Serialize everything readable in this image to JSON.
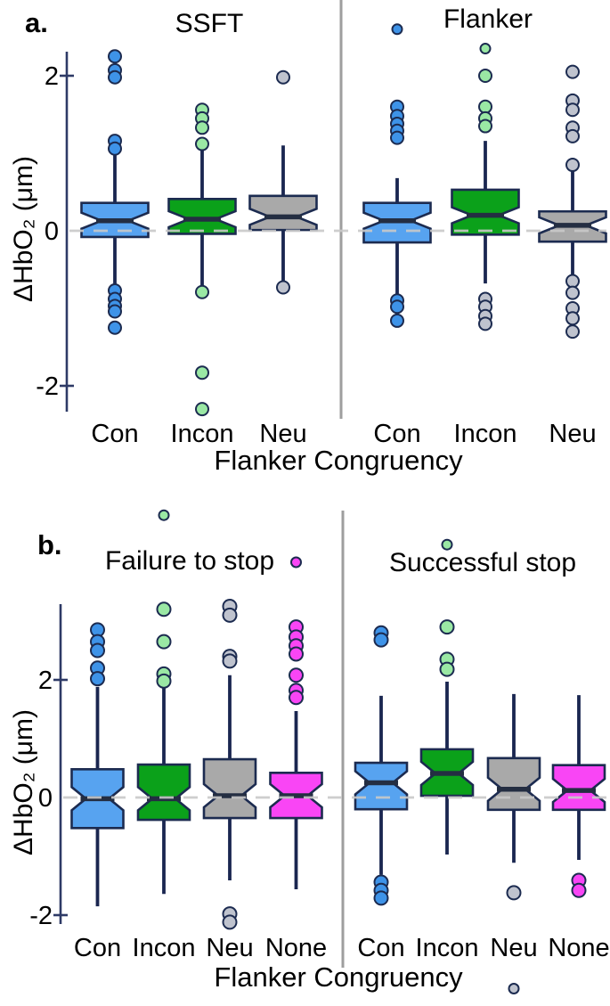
{
  "colors": {
    "blue": "#57a3f0",
    "green": "#0ba11a",
    "gray": "#a9a9a9",
    "magenta": "#f945f5",
    "blue_outlier": "#3e93e8",
    "green_light": "#9ae8a4",
    "gray_light": "#bfc3ce",
    "box_stroke": "#1c2b50",
    "whisker": "#1a2650",
    "median": "#242e42",
    "axis": "#2e3a66",
    "divider": "#9e9e9e",
    "zero_line": "#c9c9c9",
    "text": "#000000"
  },
  "chart_data": [
    {
      "type": "boxplot",
      "panel_label": "a.",
      "ylabel": "ΔHbO₂ (μm)",
      "xlabel": "Flanker Congruency",
      "ylim": [
        -2.4,
        2.35
      ],
      "yticks": [
        2,
        0,
        -2
      ],
      "grid": false,
      "zero_line_dashed": true,
      "subpanels": [
        {
          "title": "SSFT",
          "categories": [
            "Con",
            "Incon",
            "Neu"
          ],
          "boxes": [
            {
              "category": "Con",
              "color": "blue",
              "q1": -0.08,
              "median": 0.13,
              "q3": 0.36,
              "whisker_low": -0.72,
              "whisker_high": 1.03,
              "outliers": [
                {
                  "value": 2.25,
                  "color": "blue_outlier"
                },
                {
                  "value": 2.07,
                  "color": "blue_outlier"
                },
                {
                  "value": 1.98,
                  "color": "blue_outlier"
                },
                {
                  "value": 1.16,
                  "color": "blue_outlier"
                },
                {
                  "value": 1.06,
                  "color": "blue_outlier"
                },
                {
                  "value": -0.77,
                  "color": "blue_outlier"
                },
                {
                  "value": -0.88,
                  "color": "blue_outlier"
                },
                {
                  "value": -0.97,
                  "color": "blue_outlier"
                },
                {
                  "value": -1.04,
                  "color": "blue_outlier"
                },
                {
                  "value": -1.25,
                  "color": "blue_outlier"
                }
              ]
            },
            {
              "category": "Incon",
              "color": "green",
              "q1": -0.04,
              "median": 0.15,
              "q3": 0.41,
              "whisker_low": -0.73,
              "whisker_high": 1.08,
              "outliers": [
                {
                  "value": 1.56,
                  "color": "green_light"
                },
                {
                  "value": 1.45,
                  "color": "green_light"
                },
                {
                  "value": 1.33,
                  "color": "green_light"
                },
                {
                  "value": 1.12,
                  "color": "green_light"
                },
                {
                  "value": -0.79,
                  "color": "green_light"
                },
                {
                  "value": -1.83,
                  "color": "green_light"
                },
                {
                  "value": -2.3,
                  "color": "green_light"
                }
              ]
            },
            {
              "category": "Neu",
              "color": "gray",
              "q1": 0.01,
              "median": 0.18,
              "q3": 0.45,
              "whisker_low": -0.66,
              "whisker_high": 1.1,
              "outliers": [
                {
                  "value": 1.98,
                  "color": "gray_light"
                },
                {
                  "value": -0.73,
                  "color": "gray_light"
                }
              ]
            }
          ]
        },
        {
          "title": "Flanker",
          "categories": [
            "Con",
            "Incon",
            "Neu"
          ],
          "boxes": [
            {
              "category": "Con",
              "color": "blue",
              "q1": -0.15,
              "median": 0.13,
              "q3": 0.36,
              "whisker_low": -0.85,
              "whisker_high": 0.68,
              "outliers": [
                {
                  "value": 2.6,
                  "color": "blue_outlier"
                },
                {
                  "value": 1.6,
                  "color": "blue_outlier"
                },
                {
                  "value": 1.48,
                  "color": "blue_outlier"
                },
                {
                  "value": 1.38,
                  "color": "blue_outlier"
                },
                {
                  "value": 1.29,
                  "color": "blue_outlier"
                },
                {
                  "value": 1.2,
                  "color": "blue_outlier"
                },
                {
                  "value": -0.9,
                  "color": "blue_outlier"
                },
                {
                  "value": -0.98,
                  "color": "blue_outlier"
                },
                {
                  "value": -1.16,
                  "color": "blue_outlier"
                }
              ]
            },
            {
              "category": "Incon",
              "color": "green",
              "q1": -0.05,
              "median": 0.2,
              "q3": 0.53,
              "whisker_low": -0.68,
              "whisker_high": 1.16,
              "outliers": [
                {
                  "value": 2.35,
                  "color": "green_light"
                },
                {
                  "value": 2.0,
                  "color": "green_light"
                },
                {
                  "value": 1.6,
                  "color": "green_light"
                },
                {
                  "value": 1.45,
                  "color": "green_light"
                },
                {
                  "value": 1.35,
                  "color": "green_light"
                },
                {
                  "value": -0.88,
                  "color": "gray_light"
                },
                {
                  "value": -0.98,
                  "color": "gray_light"
                },
                {
                  "value": -1.1,
                  "color": "gray_light"
                },
                {
                  "value": -1.2,
                  "color": "gray_light"
                }
              ]
            },
            {
              "category": "Neu",
              "color": "gray",
              "q1": -0.14,
              "median": 0.07,
              "q3": 0.25,
              "whisker_low": -0.61,
              "whisker_high": 0.77,
              "outliers": [
                {
                  "value": 2.05,
                  "color": "gray_light"
                },
                {
                  "value": 1.68,
                  "color": "gray_light"
                },
                {
                  "value": 1.56,
                  "color": "gray_light"
                },
                {
                  "value": 1.33,
                  "color": "gray_light"
                },
                {
                  "value": 1.22,
                  "color": "gray_light"
                },
                {
                  "value": 0.85,
                  "color": "gray_light"
                },
                {
                  "value": -0.65,
                  "color": "gray_light"
                },
                {
                  "value": -0.8,
                  "color": "gray_light"
                },
                {
                  "value": -1.0,
                  "color": "gray_light"
                },
                {
                  "value": -1.13,
                  "color": "gray_light"
                },
                {
                  "value": -1.3,
                  "color": "gray_light"
                }
              ]
            }
          ]
        }
      ]
    },
    {
      "type": "boxplot",
      "panel_label": "b.",
      "ylabel": "ΔHbO₂ (μm)",
      "xlabel": "Flanker Congruency",
      "ylim": [
        -3.4,
        4.9
      ],
      "yticks": [
        2,
        0,
        -2
      ],
      "grid": false,
      "zero_line_dashed": true,
      "subpanels": [
        {
          "title": "Failure to stop",
          "categories": [
            "Con",
            "Incon",
            "Neu",
            "None"
          ],
          "boxes": [
            {
              "category": "Con",
              "color": "blue",
              "q1": -0.52,
              "median": -0.02,
              "q3": 0.48,
              "whisker_low": -1.85,
              "whisker_high": 1.88,
              "outliers": [
                {
                  "value": 2.85,
                  "color": "blue_outlier"
                },
                {
                  "value": 2.65,
                  "color": "blue_outlier"
                },
                {
                  "value": 2.5,
                  "color": "blue_outlier"
                },
                {
                  "value": 2.2,
                  "color": "blue_outlier"
                },
                {
                  "value": 2.02,
                  "color": "blue_outlier"
                }
              ]
            },
            {
              "category": "Incon",
              "color": "green",
              "q1": -0.38,
              "median": -0.02,
              "q3": 0.56,
              "whisker_low": -1.64,
              "whisker_high": 1.86,
              "outliers": [
                {
                  "value": 4.8,
                  "color": "green_light"
                },
                {
                  "value": 3.2,
                  "color": "green_light"
                },
                {
                  "value": 2.65,
                  "color": "green_light"
                },
                {
                  "value": 2.1,
                  "color": "green_light"
                },
                {
                  "value": 1.98,
                  "color": "green_light"
                }
              ]
            },
            {
              "category": "Neu",
              "color": "gray",
              "q1": -0.35,
              "median": 0.03,
              "q3": 0.65,
              "whisker_low": -1.41,
              "whisker_high": 2.08,
              "outliers": [
                {
                  "value": 3.25,
                  "color": "gray_light"
                },
                {
                  "value": 3.1,
                  "color": "gray_light"
                },
                {
                  "value": 2.4,
                  "color": "gray_light"
                },
                {
                  "value": 2.32,
                  "color": "gray_light"
                },
                {
                  "value": -1.98,
                  "color": "gray_light"
                },
                {
                  "value": -2.12,
                  "color": "gray_light"
                }
              ]
            },
            {
              "category": "None",
              "color": "magenta",
              "q1": -0.35,
              "median": 0.03,
              "q3": 0.42,
              "whisker_low": -1.56,
              "whisker_high": 1.47,
              "outliers": [
                {
                  "value": 4.0,
                  "color": "magenta"
                },
                {
                  "value": 2.9,
                  "color": "magenta"
                },
                {
                  "value": 2.73,
                  "color": "magenta"
                },
                {
                  "value": 2.58,
                  "color": "magenta"
                },
                {
                  "value": 2.44,
                  "color": "magenta"
                },
                {
                  "value": 2.08,
                  "color": "magenta"
                },
                {
                  "value": 1.82,
                  "color": "magenta"
                },
                {
                  "value": 1.7,
                  "color": "magenta"
                }
              ]
            }
          ]
        },
        {
          "title": "Successful stop",
          "categories": [
            "Con",
            "Incon",
            "Neu",
            "None"
          ],
          "boxes": [
            {
              "category": "Con",
              "color": "blue",
              "q1": -0.2,
              "median": 0.25,
              "q3": 0.59,
              "whisker_low": -1.31,
              "whisker_high": 1.73,
              "outliers": [
                {
                  "value": 2.8,
                  "color": "blue_outlier"
                },
                {
                  "value": 2.68,
                  "color": "blue_outlier"
                },
                {
                  "value": -1.44,
                  "color": "blue_outlier"
                },
                {
                  "value": -1.58,
                  "color": "blue_outlier"
                },
                {
                  "value": -1.71,
                  "color": "blue_outlier"
                }
              ]
            },
            {
              "category": "Incon",
              "color": "green",
              "q1": 0.03,
              "median": 0.41,
              "q3": 0.82,
              "whisker_low": -0.97,
              "whisker_high": 1.97,
              "outliers": [
                {
                  "value": 4.3,
                  "color": "green_light"
                },
                {
                  "value": 2.9,
                  "color": "green_light"
                },
                {
                  "value": 2.35,
                  "color": "green_light"
                },
                {
                  "value": 2.18,
                  "color": "green_light"
                }
              ]
            },
            {
              "category": "Neu",
              "color": "gray",
              "q1": -0.21,
              "median": 0.14,
              "q3": 0.67,
              "whisker_low": -1.11,
              "whisker_high": 1.76,
              "outliers": [
                {
                  "value": -1.62,
                  "color": "gray_light"
                },
                {
                  "value": -3.25,
                  "color": "gray_light"
                }
              ]
            },
            {
              "category": "None",
              "color": "magenta",
              "q1": -0.21,
              "median": 0.12,
              "q3": 0.55,
              "whisker_low": -1.06,
              "whisker_high": 1.74,
              "outliers": [
                {
                  "value": -1.41,
                  "color": "magenta"
                },
                {
                  "value": -1.58,
                  "color": "magenta"
                }
              ]
            }
          ]
        }
      ]
    }
  ]
}
